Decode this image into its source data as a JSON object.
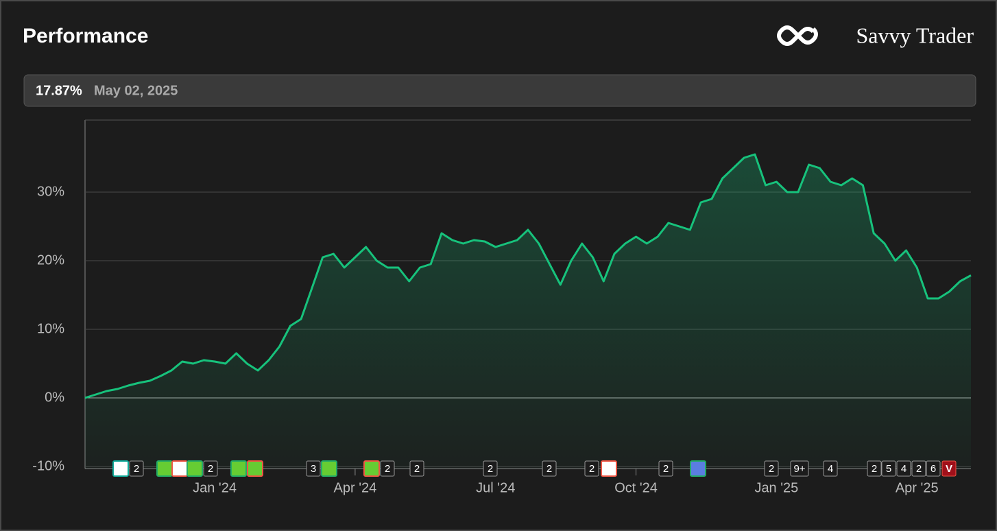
{
  "header": {
    "title": "Performance",
    "brand": "Savvy Trader"
  },
  "chart_data": {
    "type": "line",
    "current_label": "17.87%",
    "current_date": "May 02, 2025",
    "categories": [
      null,
      null,
      null,
      null,
      null,
      null,
      null,
      null,
      null,
      null,
      null,
      null,
      "Jan '24",
      null,
      null,
      null,
      null,
      null,
      null,
      null,
      null,
      null,
      null,
      null,
      null,
      "Apr '24",
      null,
      null,
      null,
      null,
      null,
      null,
      null,
      null,
      null,
      null,
      null,
      null,
      "Jul '24",
      null,
      null,
      null,
      null,
      null,
      null,
      null,
      null,
      null,
      null,
      null,
      null,
      "Oct '24",
      null,
      null,
      null,
      null,
      null,
      null,
      null,
      null,
      null,
      null,
      null,
      null,
      "Jan '25",
      null,
      null,
      null,
      null,
      null,
      null,
      null,
      null,
      null,
      null,
      null,
      null,
      "Apr '25",
      null,
      null,
      null,
      null,
      null
    ],
    "series": [
      {
        "color": "#17c27c",
        "values": [
          0,
          0.5,
          1.0,
          1.3,
          1.8,
          2.2,
          2.5,
          3.2,
          4.0,
          5.3,
          5.0,
          5.5,
          5.3,
          5.0,
          6.5,
          5.0,
          4.0,
          5.5,
          7.5,
          10.5,
          11.5,
          16.0,
          20.5,
          21.0,
          19.0,
          20.5,
          22.0,
          20.0,
          19.0,
          19.0,
          17.0,
          19.0,
          19.5,
          24.0,
          23.0,
          22.5,
          23.0,
          22.8,
          22.0,
          22.5,
          23.0,
          24.5,
          22.5,
          19.5,
          16.5,
          20.0,
          22.5,
          20.5,
          17.0,
          21.0,
          22.5,
          23.5,
          22.5,
          23.5,
          25.5,
          25.0,
          24.5,
          28.5,
          29.0,
          32.0,
          33.5,
          35.0,
          35.5,
          31.0,
          31.5,
          30.0,
          30.0,
          34.0,
          33.5,
          31.5,
          31.0,
          32.0,
          31.0,
          24.0,
          22.5,
          20.0,
          21.5,
          19.0,
          14.5,
          14.5,
          15.5,
          17.0,
          17.87
        ]
      }
    ],
    "ylim": [
      -10.3,
      40.5
    ],
    "yticks": [
      {
        "value": -10,
        "label": "-10%"
      },
      {
        "value": 0,
        "label": "0%"
      },
      {
        "value": 10,
        "label": "10%"
      },
      {
        "value": 20,
        "label": "20%"
      },
      {
        "value": 30,
        "label": "30%"
      }
    ],
    "grid": true,
    "event_badges": [
      "2",
      "2",
      "3",
      "2",
      "2",
      "2",
      "2",
      "2",
      "2",
      "2",
      "9+",
      "4",
      "2",
      "5",
      "4",
      "2",
      "6",
      "V"
    ]
  }
}
